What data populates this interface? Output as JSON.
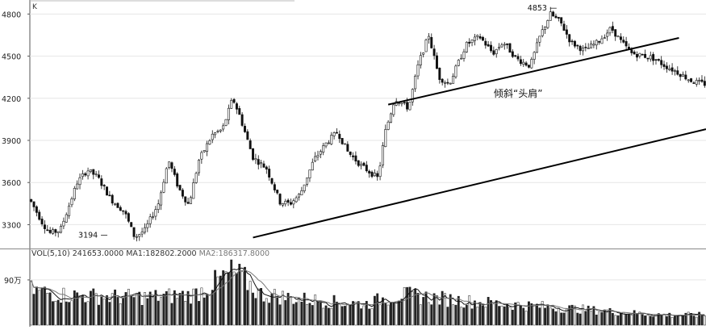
{
  "chart_data": [
    {
      "type": "candlestick",
      "panel": "price",
      "corner_label": "K",
      "y_ticks": [
        "4800",
        "4500",
        "4200",
        "3900",
        "3600",
        "3300"
      ],
      "ylim": [
        3130,
        4900
      ],
      "grid": true,
      "annotations": {
        "low_label": "3194",
        "high_label": "4853",
        "pattern_label": "倾斜“头肩”"
      },
      "trendlines": [
        {
          "from": [
            0.33,
            3208
          ],
          "to": [
            1.0,
            3980
          ]
        },
        {
          "from": [
            0.53,
            4155
          ],
          "to": [
            0.96,
            4630
          ]
        }
      ],
      "price_path": [
        [
          0.0,
          3480
        ],
        [
          0.02,
          3300
        ],
        [
          0.03,
          3240
        ],
        [
          0.045,
          3260
        ],
        [
          0.07,
          3600
        ],
        [
          0.085,
          3690
        ],
        [
          0.1,
          3640
        ],
        [
          0.12,
          3480
        ],
        [
          0.14,
          3390
        ],
        [
          0.155,
          3210
        ],
        [
          0.17,
          3260
        ],
        [
          0.19,
          3450
        ],
        [
          0.205,
          3760
        ],
        [
          0.22,
          3560
        ],
        [
          0.235,
          3440
        ],
        [
          0.25,
          3760
        ],
        [
          0.27,
          3940
        ],
        [
          0.285,
          3980
        ],
        [
          0.3,
          4200
        ],
        [
          0.31,
          4080
        ],
        [
          0.33,
          3780
        ],
        [
          0.35,
          3700
        ],
        [
          0.37,
          3460
        ],
        [
          0.385,
          3450
        ],
        [
          0.4,
          3520
        ],
        [
          0.42,
          3760
        ],
        [
          0.44,
          3890
        ],
        [
          0.455,
          3960
        ],
        [
          0.47,
          3820
        ],
        [
          0.49,
          3720
        ],
        [
          0.515,
          3630
        ],
        [
          0.525,
          3950
        ],
        [
          0.54,
          4200
        ],
        [
          0.56,
          4130
        ],
        [
          0.575,
          4450
        ],
        [
          0.59,
          4650
        ],
        [
          0.605,
          4350
        ],
        [
          0.62,
          4300
        ],
        [
          0.645,
          4580
        ],
        [
          0.665,
          4640
        ],
        [
          0.685,
          4520
        ],
        [
          0.7,
          4600
        ],
        [
          0.72,
          4480
        ],
        [
          0.74,
          4430
        ],
        [
          0.755,
          4650
        ],
        [
          0.77,
          4800
        ],
        [
          0.785,
          4740
        ],
        [
          0.8,
          4600
        ],
        [
          0.82,
          4540
        ],
        [
          0.84,
          4600
        ],
        [
          0.86,
          4700
        ],
        [
          0.875,
          4600
        ],
        [
          0.89,
          4520
        ],
        [
          0.92,
          4490
        ],
        [
          0.94,
          4430
        ],
        [
          0.96,
          4380
        ],
        [
          0.98,
          4320
        ],
        [
          1.0,
          4300
        ]
      ]
    },
    {
      "type": "bar",
      "panel": "volume",
      "legend": {
        "vol": "VOL(5,10)",
        "vol_value": "241653.0000",
        "ma1": "MA1:182802.2000",
        "ma2": "MA2:186317.8000"
      },
      "y_tick": "90万",
      "y_tick_value": 900000,
      "ylim": [
        0,
        1300000
      ],
      "volume_path": [
        [
          0.0,
          700000
        ],
        [
          0.05,
          600000
        ],
        [
          0.12,
          560000
        ],
        [
          0.18,
          560000
        ],
        [
          0.24,
          600000
        ],
        [
          0.26,
          720000
        ],
        [
          0.28,
          900000
        ],
        [
          0.3,
          1050000
        ],
        [
          0.32,
          880000
        ],
        [
          0.34,
          620000
        ],
        [
          0.4,
          520000
        ],
        [
          0.45,
          460000
        ],
        [
          0.5,
          420000
        ],
        [
          0.52,
          520000
        ],
        [
          0.55,
          600000
        ],
        [
          0.6,
          540000
        ],
        [
          0.65,
          470000
        ],
        [
          0.7,
          420000
        ],
        [
          0.75,
          380000
        ],
        [
          0.8,
          330000
        ],
        [
          0.85,
          280000
        ],
        [
          0.9,
          230000
        ],
        [
          0.95,
          200000
        ],
        [
          1.0,
          200000
        ]
      ],
      "ma_lines": [
        "MA1",
        "MA2"
      ]
    }
  ]
}
